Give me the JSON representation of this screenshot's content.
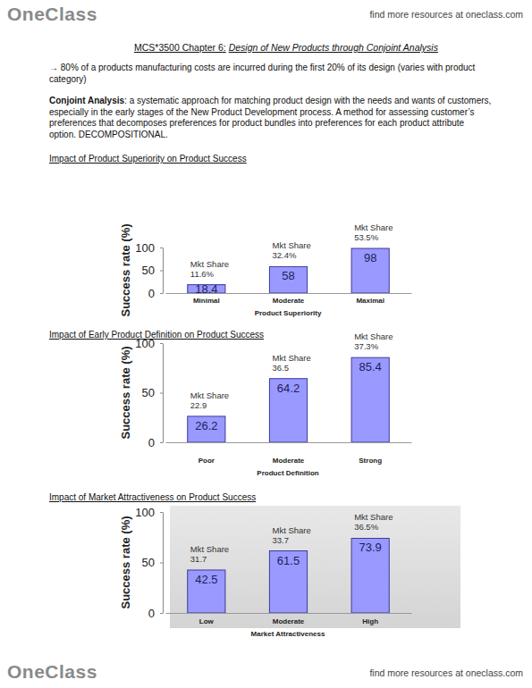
{
  "header": {
    "logo": "OneClass",
    "link": "find more resources at oneclass.com"
  },
  "footer": {
    "logo": "OneClass",
    "link": "find more resources at oneclass.com"
  },
  "title": {
    "course": "MCS*3500 Chapter 6:",
    "topic": "Design of New Products through Conjoint Analysis"
  },
  "bullet": "→ 80% of a products manufacturing costs are incurred during the first 20% of its design (varies with product category)",
  "definition": {
    "term": "Conjoint Analysis",
    "text": ": a systematic approach for matching product design with the needs and wants of customers, especially in the early stages of the New Product Development process. A method for assessing customer’s preferences that decomposes preferences for product bundles into preferences for each product attribute option. DECOMPOSITIONAL."
  },
  "chart_data": [
    {
      "type": "bar",
      "title": "Impact of Product Superiority on Product Success",
      "x_label": "Product Superiority",
      "y_label": "Success rate (%)",
      "categories": [
        "Minimal",
        "Moderate",
        "Maximal"
      ],
      "values": [
        18.4,
        58,
        98
      ],
      "color": "#9999ff",
      "ylim": [
        0,
        100
      ],
      "yticks": [
        0,
        50,
        100
      ],
      "data_labels": true,
      "market_share": {
        "name": "Mkt Share",
        "values": [
          11.6,
          32.4,
          53.5
        ],
        "value_labels": [
          "11.6%",
          "32.4%",
          "53.5%"
        ]
      }
    },
    {
      "type": "bar",
      "title": "Impact of Early Product Definition on Product Success",
      "x_label": "Product Definition",
      "y_label": "Success rate (%)",
      "categories": [
        "Poor",
        "Moderate",
        "Strong"
      ],
      "values": [
        26.2,
        64.2,
        85.4
      ],
      "color": "#9999ff",
      "ylim": [
        0,
        100
      ],
      "yticks": [
        0,
        50,
        100
      ],
      "data_labels": true,
      "market_share": {
        "name": "Mkt Share",
        "values": [
          22.9,
          36.5,
          37.3
        ],
        "value_labels": [
          "22.9",
          "36.5",
          "37.3%"
        ]
      }
    },
    {
      "type": "bar",
      "title": "Impact of Market Attractiveness on Product Success",
      "x_label": "Market Attractiveness",
      "y_label": "Success rate (%)",
      "categories": [
        "Low",
        "Moderate",
        "High"
      ],
      "values": [
        42.5,
        61.5,
        73.9
      ],
      "color": "#9999ff",
      "ylim": [
        0,
        100
      ],
      "yticks": [
        0,
        50,
        100
      ],
      "data_labels": true,
      "market_share": {
        "name": "Mkt Share",
        "values": [
          31.7,
          33.7,
          36.5
        ],
        "value_labels": [
          "31.7",
          "33.7",
          "36.5%"
        ]
      }
    }
  ]
}
